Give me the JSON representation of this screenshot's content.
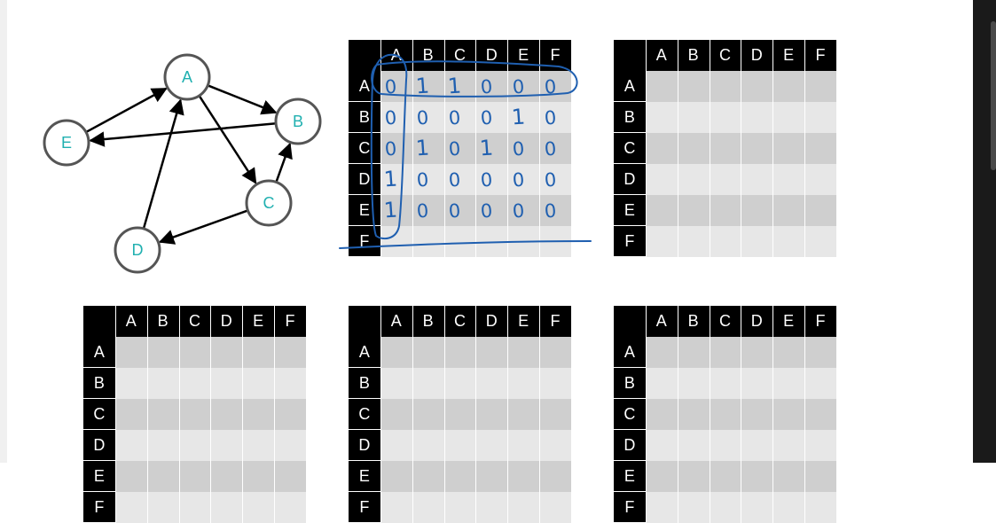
{
  "graph": {
    "nodes": [
      {
        "id": "A",
        "label": "A"
      },
      {
        "id": "B",
        "label": "B"
      },
      {
        "id": "C",
        "label": "C"
      },
      {
        "id": "D",
        "label": "D"
      },
      {
        "id": "E",
        "label": "E"
      }
    ],
    "edges": [
      {
        "from": "E",
        "to": "A"
      },
      {
        "from": "A",
        "to": "B"
      },
      {
        "from": "A",
        "to": "C"
      },
      {
        "from": "B",
        "to": "E"
      },
      {
        "from": "C",
        "to": "B"
      },
      {
        "from": "C",
        "to": "D"
      },
      {
        "from": "D",
        "to": "A"
      }
    ]
  },
  "matrix": {
    "column_labels": [
      "A",
      "B",
      "C",
      "D",
      "E",
      "F"
    ],
    "row_labels": [
      "A",
      "B",
      "C",
      "D",
      "E",
      "F"
    ]
  },
  "handwriting": {
    "rows": [
      [
        "0",
        "1",
        "1",
        "0",
        "0",
        "0"
      ],
      [
        "0",
        "0",
        "0",
        "0",
        "1",
        "0"
      ],
      [
        "0",
        "1",
        "0",
        "1",
        "0",
        "0"
      ],
      [
        "1",
        "0",
        "0",
        "0",
        "0",
        "0"
      ],
      [
        "1",
        "0",
        "0",
        "0",
        "0",
        "0"
      ]
    ]
  },
  "colors": {
    "node_label": "#20b0b0",
    "ink": "#1f5fb0",
    "header": "#000000",
    "row_odd": "#cfcfcf",
    "row_even": "#e7e7e7"
  }
}
